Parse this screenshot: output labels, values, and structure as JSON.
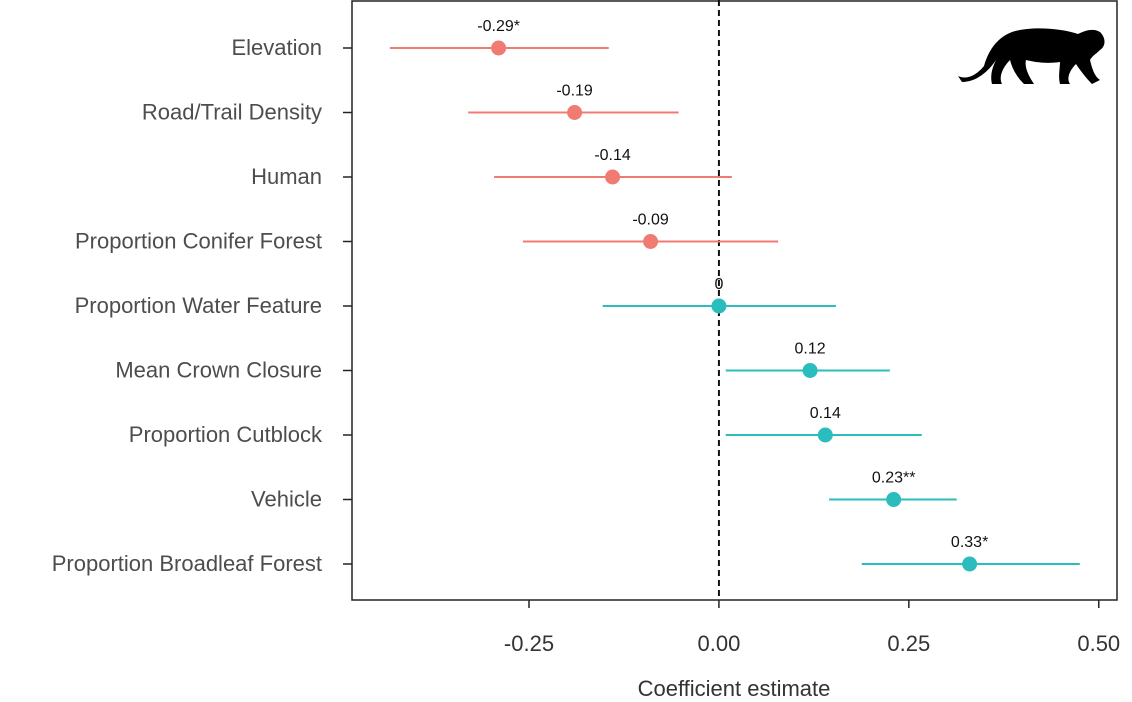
{
  "chart_data": {
    "type": "coefficient",
    "x_label": "Coefficient estimate",
    "categories": [
      "Elevation",
      "Road/Trail Density",
      "Human",
      "Proportion Conifer Forest",
      "Proportion Water Feature",
      "Mean Crown Closure",
      "Proportion Cutblock",
      "Vehicle",
      "Proportion Broadleaf Forest"
    ],
    "values": [
      -0.29,
      -0.19,
      -0.14,
      -0.09,
      0,
      0.12,
      0.14,
      0.23,
      0.33
    ],
    "value_labels": [
      "-0.29*",
      "-0.19",
      "-0.14",
      "-0.09",
      "0",
      "0.12",
      "0.14",
      "0.23**",
      "0.33*"
    ],
    "lower": [
      -0.433,
      -0.33,
      -0.296,
      -0.258,
      -0.153,
      0.009,
      0.009,
      0.145,
      0.188
    ],
    "upper": [
      -0.145,
      -0.053,
      0.017,
      0.078,
      0.154,
      0.225,
      0.267,
      0.313,
      0.475
    ],
    "colors": [
      "#f07b72",
      "#f07b72",
      "#f07b72",
      "#f07b72",
      "#2bbdbd",
      "#2bbdbd",
      "#2bbdbd",
      "#2bbdbd",
      "#2bbdbd"
    ],
    "xlim": [
      -0.483,
      0.524
    ],
    "xticks": [
      {
        "value": -0.25,
        "label": "-0.25"
      },
      {
        "value": 0,
        "label": "0.00"
      },
      {
        "value": 0.25,
        "label": "0.25"
      },
      {
        "value": 0.5,
        "label": "0.50"
      }
    ],
    "reference_line": 0
  }
}
